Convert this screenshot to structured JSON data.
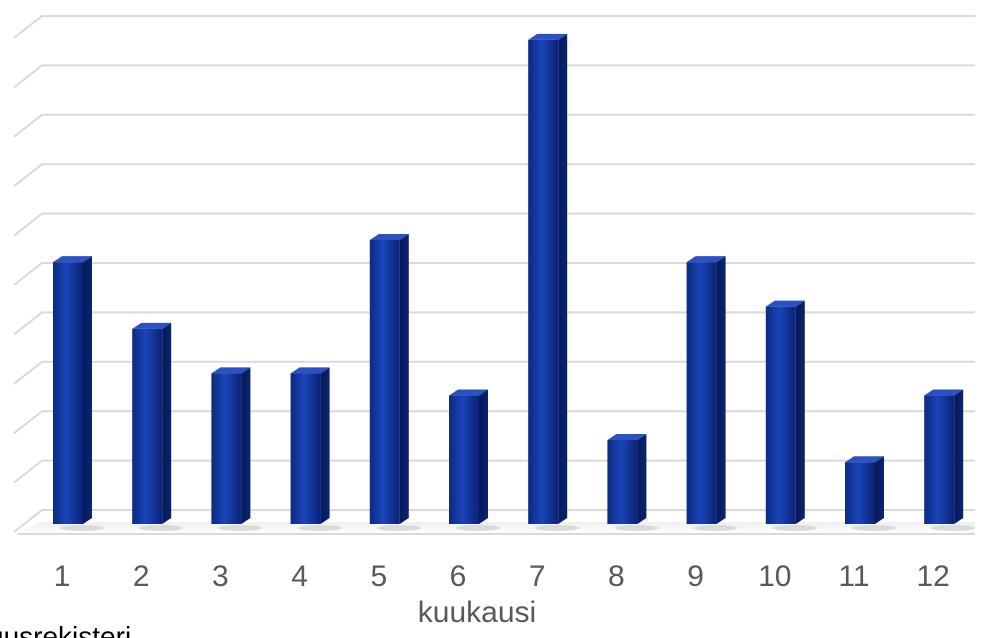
{
  "chart_data": {
    "type": "bar",
    "categories": [
      "1",
      "2",
      "3",
      "4",
      "5",
      "6",
      "7",
      "8",
      "9",
      "10",
      "11",
      "12"
    ],
    "values": [
      5.3,
      3.95,
      3.05,
      3.05,
      5.75,
      2.6,
      9.8,
      1.7,
      5.3,
      4.4,
      1.25,
      2.6
    ],
    "title": "",
    "xlabel": "kuukausi",
    "ylabel": "",
    "ylim": [
      0,
      10
    ],
    "grid": true,
    "legend": "none",
    "bar_color": "#0a2d8c",
    "grid_color": "#d9d9d9"
  },
  "footer": {
    "source_text": "uusrekisteri"
  }
}
